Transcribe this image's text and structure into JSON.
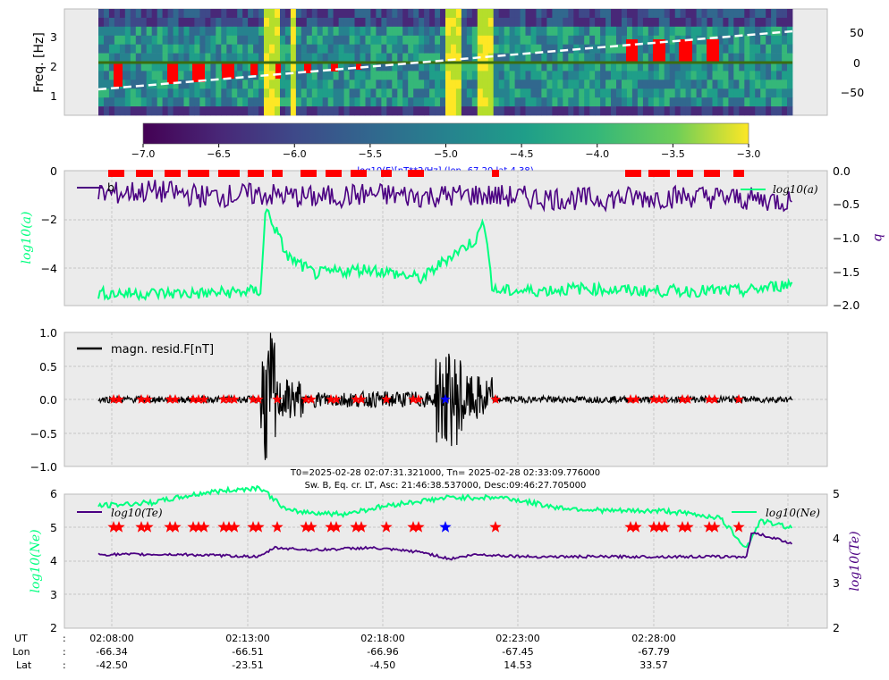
{
  "chart_data": [
    {
      "type": "heatmap",
      "ylabel": "Freq. [Hz]",
      "y_ticks": [
        "1",
        "2",
        "3"
      ],
      "y_right_ticks": [
        "50",
        "0",
        "−50"
      ],
      "colorbar": {
        "ticks": [
          "−7.0",
          "−6.5",
          "−6.0",
          "−5.5",
          "−5.0",
          "−4.5",
          "−4.0",
          "−3.5",
          "−3.0"
        ],
        "range": [
          -7.0,
          -3.0
        ],
        "label": "log10(F)[nT**2/Hz] (lon -67.20 lat 4.38)"
      },
      "overlays": [
        "red bars",
        "green horizontal line",
        "white dashed latitude line"
      ]
    },
    {
      "type": "line",
      "ylabel_left": "log10(a)",
      "ylabel_right": "b",
      "y_ticks_left": [
        "0",
        "−2",
        "−4"
      ],
      "y_ticks_right": [
        "0.0",
        "−0.5",
        "−1.0",
        "−1.5",
        "−2.0"
      ],
      "ylim_left": [
        -5.5,
        0
      ],
      "ylim_right": [
        -2.0,
        0.0
      ],
      "legend_left": "b",
      "legend_right": "log10(a)",
      "series": [
        {
          "name": "b",
          "color": "#4b0082",
          "x": [
            0,
            2,
            4,
            6,
            8,
            10,
            12,
            14,
            16,
            18,
            20,
            22,
            24,
            25.7
          ],
          "values": [
            -0.35,
            -0.3,
            -0.38,
            -0.35,
            -0.4,
            -0.35,
            -0.38,
            -0.36,
            -0.4,
            -0.42,
            -0.4,
            -0.38,
            -0.42,
            -0.45
          ]
        },
        {
          "name": "log10(a)",
          "color": "#00ff7f",
          "x": [
            0,
            2,
            4,
            6,
            6.2,
            7,
            8,
            10,
            12,
            13,
            14,
            14.3,
            14.6,
            16,
            18,
            20,
            22,
            24,
            25.7
          ],
          "values": [
            -5.0,
            -5.0,
            -5.0,
            -4.9,
            -1.5,
            -3.5,
            -4.2,
            -4.0,
            -4.4,
            -3.5,
            -2.8,
            -2.0,
            -4.9,
            -4.9,
            -4.8,
            -4.9,
            -4.9,
            -4.9,
            -4.6
          ]
        }
      ]
    },
    {
      "type": "line",
      "ylim": [
        -1.0,
        1.0
      ],
      "y_ticks": [
        "1.0",
        "0.5",
        "0.0",
        "−0.5",
        "−1.0"
      ],
      "legend": "magn. resid.F[nT]",
      "series": [
        {
          "name": "magn. resid.F[nT]",
          "color": "#000000",
          "x": [
            0,
            2,
            4,
            6,
            6.2,
            6.5,
            8,
            10,
            12,
            12.5,
            13,
            14,
            16,
            20,
            25.7
          ],
          "values": [
            0,
            0.05,
            -0.05,
            0.05,
            1.0,
            -1.0,
            0.1,
            -0.1,
            0.1,
            0.6,
            -0.6,
            0.3,
            0.05,
            0.05,
            0.05
          ]
        }
      ]
    },
    {
      "type": "line",
      "title_line1": "T0=2025-02-28 02:07:31.321000, Tn= 2025-02-28 02:33:09.776000",
      "title_line2": "Sw. B, Eq. cr. LT, Asc: 21:46:38.537000, Desc:09:46:27.705000",
      "ylabel_left": "log10(Ne)",
      "ylabel_right": "log10(Te)",
      "y_ticks_left": [
        "6",
        "5",
        "4",
        "3",
        "2"
      ],
      "y_ticks_right": [
        "5",
        "4",
        "3",
        "2"
      ],
      "ylim_left": [
        2,
        6
      ],
      "ylim_right": [
        2,
        5
      ],
      "legend_left": "log10(Te)",
      "legend_right": "log10(Ne)",
      "series": [
        {
          "name": "log10(Ne)",
          "color": "#00ff7f",
          "x": [
            0,
            2,
            4,
            6,
            7,
            9,
            11,
            13,
            15,
            17,
            19,
            21,
            23,
            24,
            24.5,
            25.7
          ],
          "values": [
            5.65,
            5.75,
            6.05,
            6.2,
            5.5,
            5.4,
            5.7,
            5.9,
            5.9,
            5.6,
            5.5,
            5.5,
            5.3,
            4.4,
            5.2,
            5.0
          ]
        },
        {
          "name": "log10(Te)",
          "color": "#4b0082",
          "x": [
            0,
            3,
            6,
            6.5,
            8,
            10,
            12,
            13,
            14,
            16,
            20,
            24,
            24.2,
            25.7
          ],
          "values": [
            3.65,
            3.65,
            3.6,
            3.8,
            3.75,
            3.8,
            3.7,
            3.55,
            3.65,
            3.6,
            3.6,
            3.6,
            4.15,
            3.9
          ]
        }
      ]
    }
  ],
  "x_axis": {
    "row_labels": [
      "UT",
      "Lon",
      "Lat"
    ],
    "sep": ":",
    "ticks": [
      {
        "ut": "02:08:00",
        "lon": "-66.34",
        "lat": "-42.50"
      },
      {
        "ut": "02:13:00",
        "lon": "-66.51",
        "lat": "-23.51"
      },
      {
        "ut": "02:18:00",
        "lon": "-66.96",
        "lat": "-4.50"
      },
      {
        "ut": "02:23:00",
        "lon": "-67.45",
        "lat": "14.53"
      },
      {
        "ut": "02:28:00",
        "lon": "-67.79",
        "lat": "33.57"
      }
    ]
  },
  "colors": {
    "panel_bg": "#ebebeb",
    "red": "#ff0000",
    "green_line": "#00ff7f",
    "purple_line": "#4b0082",
    "blue_marker": "#0000ff"
  }
}
